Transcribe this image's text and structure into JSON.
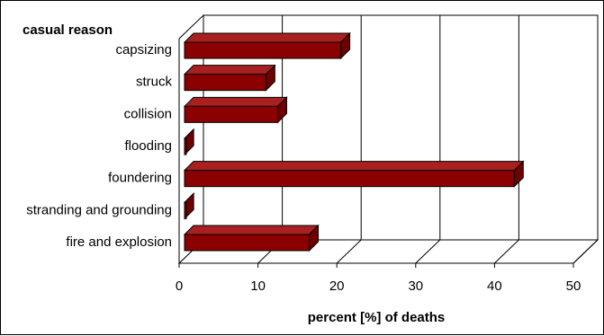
{
  "chart_data": {
    "type": "bar",
    "orientation": "horizontal",
    "three_d": true,
    "category_axis_title": "casual reason",
    "xlabel": "percent [%] of deaths",
    "categories": [
      "capsizing",
      "struck",
      "collision",
      "flooding",
      "foundering",
      "stranding and grounding",
      "fire and explosion"
    ],
    "values": [
      20.5,
      11,
      12.5,
      0.7,
      42.5,
      0.7,
      16.5
    ],
    "xlim": [
      0,
      50
    ],
    "x_ticks": [
      "0",
      "10",
      "20",
      "30",
      "40",
      "50"
    ],
    "grid": "vertical",
    "legend": "none",
    "bar_color": "#8b0000"
  }
}
